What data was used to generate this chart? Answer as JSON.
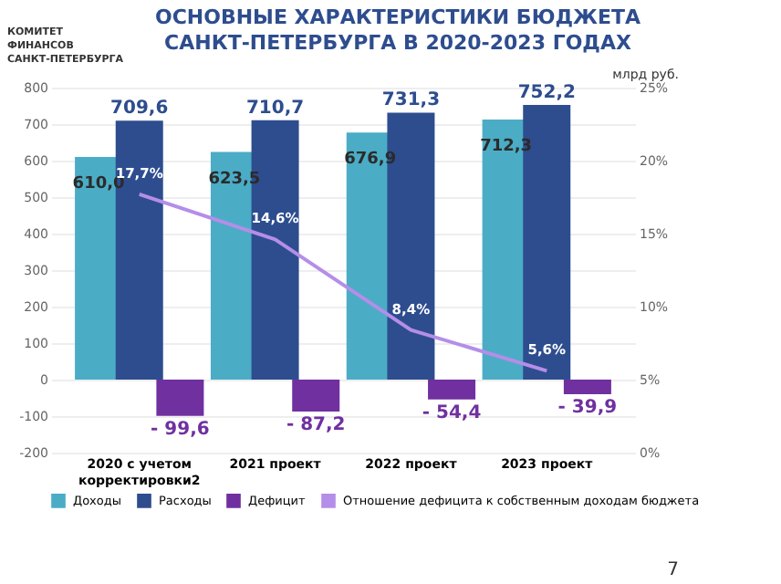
{
  "chart_data": {
    "type": "bar",
    "title": "ОСНОВНЫЕ ХАРАКТЕРИСТИКИ БЮДЖЕТА САНКТ-ПЕТЕРБУРГА В 2020-2023 ГОДАХ",
    "subtitle": "млрд руб.",
    "annotations": [
      "КОМИТЕТ ФИНАНСОВ САНКТ-ПЕТЕРБУРГА",
      "7"
    ],
    "categories": [
      "2020 с учетом корректировки2",
      "2021 проект",
      "2022 проект",
      "2023 проект"
    ],
    "series": [
      {
        "name": "Доходы",
        "color": "#4bacc6",
        "values": [
          610.0,
          623.5,
          676.9,
          712.3
        ],
        "value_labels": [
          "610,0",
          "623,5",
          "676,9",
          "712,3"
        ]
      },
      {
        "name": "Расходы",
        "color": "#2e4d8f",
        "values": [
          709.6,
          710.7,
          731.3,
          752.2
        ],
        "value_labels": [
          "709,6",
          "710,7",
          "731,3",
          "752,2"
        ]
      },
      {
        "name": "Дефицит",
        "color": "#7030a0",
        "values": [
          -99.6,
          -87.2,
          -54.4,
          -39.9
        ],
        "value_labels": [
          "- 99,6",
          "- 87,2",
          "- 54,4",
          "- 39,9"
        ]
      },
      {
        "name": "Отношение дефицита к собственным доходам бюджета",
        "type": "line",
        "axis": "y2",
        "color": "#b48ee8",
        "values": [
          17.7,
          14.6,
          8.4,
          5.6
        ],
        "value_labels": [
          "17,7%",
          "14,6%",
          "8,4%",
          "5,6%"
        ]
      }
    ],
    "ylim": [
      -200,
      800
    ],
    "yticks": [
      -200,
      -100,
      0,
      100,
      200,
      300,
      400,
      500,
      600,
      700,
      800
    ],
    "y2lim": [
      0,
      25
    ],
    "y2ticks": [
      {
        "value": 0,
        "label": "0%"
      },
      {
        "value": 5,
        "label": "5%"
      },
      {
        "value": 10,
        "label": "10%"
      },
      {
        "value": 15,
        "label": "15%"
      },
      {
        "value": 20,
        "label": "20%"
      },
      {
        "value": 25,
        "label": "25%"
      }
    ],
    "grid": "y",
    "legend": "bottom"
  }
}
